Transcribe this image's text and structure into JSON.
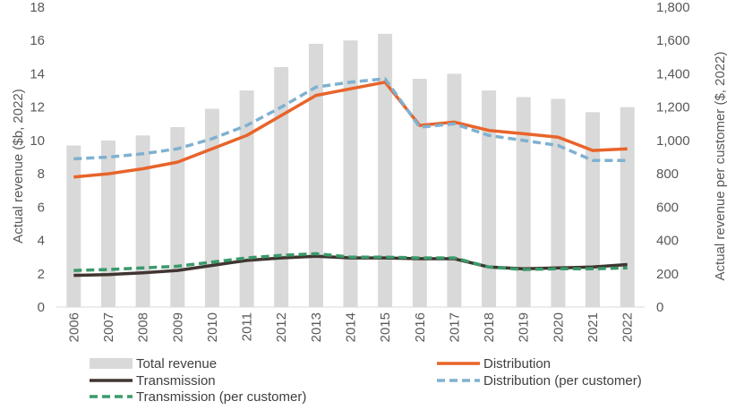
{
  "chart_data": {
    "type": "bar",
    "categories": [
      "2006",
      "2007",
      "2008",
      "2009",
      "2010",
      "2011",
      "2012",
      "2013",
      "2014",
      "2015",
      "2016",
      "2017",
      "2018",
      "2019",
      "2020",
      "2021",
      "2022"
    ],
    "ylabel": "Actual revenue ($b, 2022)",
    "y2label": "Actual revenue per customer ($, 2022)",
    "ylim": [
      0,
      18
    ],
    "y2lim": [
      0,
      1800
    ],
    "yticks": [
      "0",
      "2",
      "4",
      "6",
      "8",
      "10",
      "12",
      "14",
      "16",
      "18"
    ],
    "y2ticks": [
      "0",
      "200",
      "400",
      "600",
      "800",
      "1,000",
      "1,200",
      "1,400",
      "1,600",
      "1,800"
    ],
    "grid": false,
    "legend_position": "bottom",
    "series": [
      {
        "name": "Total revenue",
        "kind": "bar",
        "axis": "left",
        "color": "#d9d9d9",
        "values": [
          9.7,
          10.0,
          10.3,
          10.8,
          11.9,
          13.0,
          14.4,
          15.8,
          16.0,
          16.4,
          13.7,
          14.0,
          13.0,
          12.6,
          12.5,
          11.7,
          12.0
        ]
      },
      {
        "name": "Distribution",
        "kind": "line",
        "axis": "left",
        "color": "#e8642a",
        "dash": "solid",
        "values": [
          7.8,
          8.0,
          8.3,
          8.7,
          9.5,
          10.3,
          11.5,
          12.7,
          13.1,
          13.5,
          10.9,
          11.1,
          10.6,
          10.4,
          10.2,
          9.4,
          9.5
        ]
      },
      {
        "name": "Transmission",
        "kind": "line",
        "axis": "left",
        "color": "#403530",
        "dash": "solid",
        "values": [
          1.9,
          1.95,
          2.05,
          2.2,
          2.5,
          2.8,
          2.95,
          3.05,
          2.95,
          2.95,
          2.9,
          2.9,
          2.4,
          2.3,
          2.35,
          2.4,
          2.55
        ]
      },
      {
        "name": "Distribution (per customer)",
        "kind": "line",
        "axis": "right",
        "color": "#7fb1d0",
        "dash": "dashed",
        "values": [
          890,
          900,
          920,
          950,
          1010,
          1090,
          1200,
          1320,
          1350,
          1370,
          1080,
          1100,
          1030,
          1000,
          970,
          880,
          880
        ]
      },
      {
        "name": "Transmission (per customer)",
        "kind": "line",
        "axis": "right",
        "color": "#3a9a6a",
        "dash": "dashed",
        "values": [
          220,
          225,
          235,
          245,
          270,
          295,
          310,
          320,
          300,
          300,
          295,
          295,
          240,
          225,
          230,
          230,
          235
        ]
      }
    ]
  }
}
